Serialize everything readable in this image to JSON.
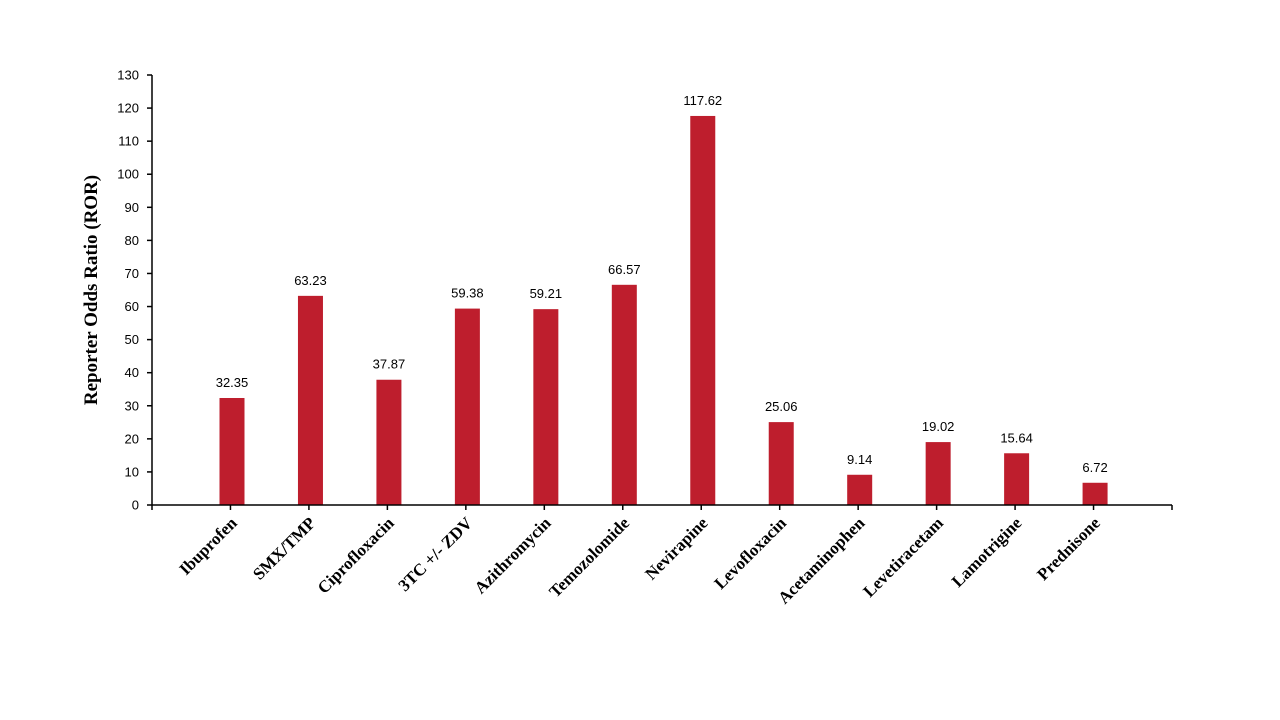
{
  "chart_data": {
    "type": "bar",
    "title": "",
    "xlabel": "",
    "ylabel": "Reporter Odds Ratio (ROR)",
    "ylim": [
      0,
      130
    ],
    "ytick_step": 10,
    "grid": false,
    "legend": "none",
    "bar_color": "#BE1E2D",
    "categories": [
      "Ibuprofen",
      "SMX/TMP",
      "Ciprofloxacin",
      "3TC +/- ZDV",
      "Azithromycin",
      "Temozolomide",
      "Nevirapine",
      "Levofloxacin",
      "Acetaminophen",
      "Levetiracetam",
      "Lamotrigine",
      "Prednisone"
    ],
    "values": [
      32.35,
      63.23,
      37.87,
      59.38,
      59.21,
      66.57,
      117.62,
      25.06,
      9.14,
      19.02,
      15.64,
      6.72
    ],
    "data_labels": [
      "32.35",
      "63.23",
      "37.87",
      "59.38",
      "59.21",
      "66.57",
      "117.62",
      "25.06",
      "9.14",
      "19.02",
      "15.64",
      "6.72"
    ]
  }
}
